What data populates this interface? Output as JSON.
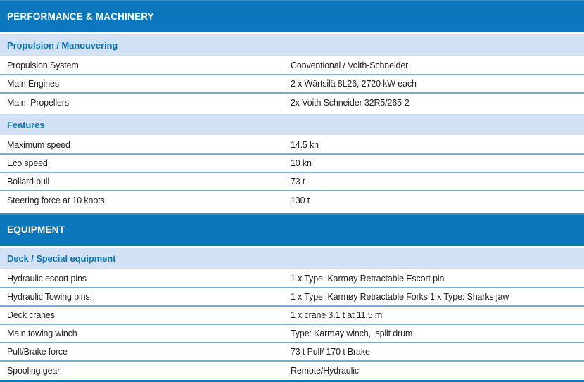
{
  "colors": {
    "header_bg": "#0b78bd",
    "header_text": "#ffffff",
    "band_bg": "#d2e1f4",
    "band_text": "#0b78bd",
    "row_divider": "#74add8",
    "label_text": "#242424",
    "bottom_border": "#0b78bd"
  },
  "sections": [
    {
      "title": "PERFORMANCE & MACHINERY",
      "groups": [
        {
          "heading": "Propulsion / Manouvering",
          "rows": [
            {
              "label": "Propulsion System",
              "value": "Conventional / Voith-Schneider"
            },
            {
              "label": "Main Engines",
              "value": "2 x Wärtsilä 8L26, 2720 kW each"
            },
            {
              "label": "Main  Propellers",
              "value": "2x Voith Schneider 32R5/265-2"
            }
          ]
        },
        {
          "heading": "Features",
          "rows": [
            {
              "label": "Maximum speed",
              "value": "14.5 kn"
            },
            {
              "label": "Eco speed",
              "value": "10 kn"
            },
            {
              "label": "Bollard pull",
              "value": "73 t"
            },
            {
              "label": "Steering force at 10 knots",
              "value": "130 t"
            }
          ]
        }
      ]
    },
    {
      "title": "EQUIPMENT",
      "groups": [
        {
          "heading": "Deck / Special equipment",
          "rows": [
            {
              "label": "Hydraulic escort pins",
              "value": "1 x Type: Karmøy Retractable Escort pin"
            },
            {
              "label": "Hydraulic Towing pins:",
              "value": "1 x Type: Karmøy Retractable Forks 1 x Type: Sharks jaw"
            },
            {
              "label": "Deck cranes",
              "value": "1 x crane 3.1 t at 11.5 m"
            },
            {
              "label": "Main towing winch",
              "value": "Type: Karmøy winch,  split drum"
            },
            {
              "label": "Pull/Brake force",
              "value": "73 t Pull/ 170 t Brake"
            },
            {
              "label": "Spooling gear",
              "value": "Remote/Hydraulic"
            }
          ]
        }
      ]
    }
  ]
}
